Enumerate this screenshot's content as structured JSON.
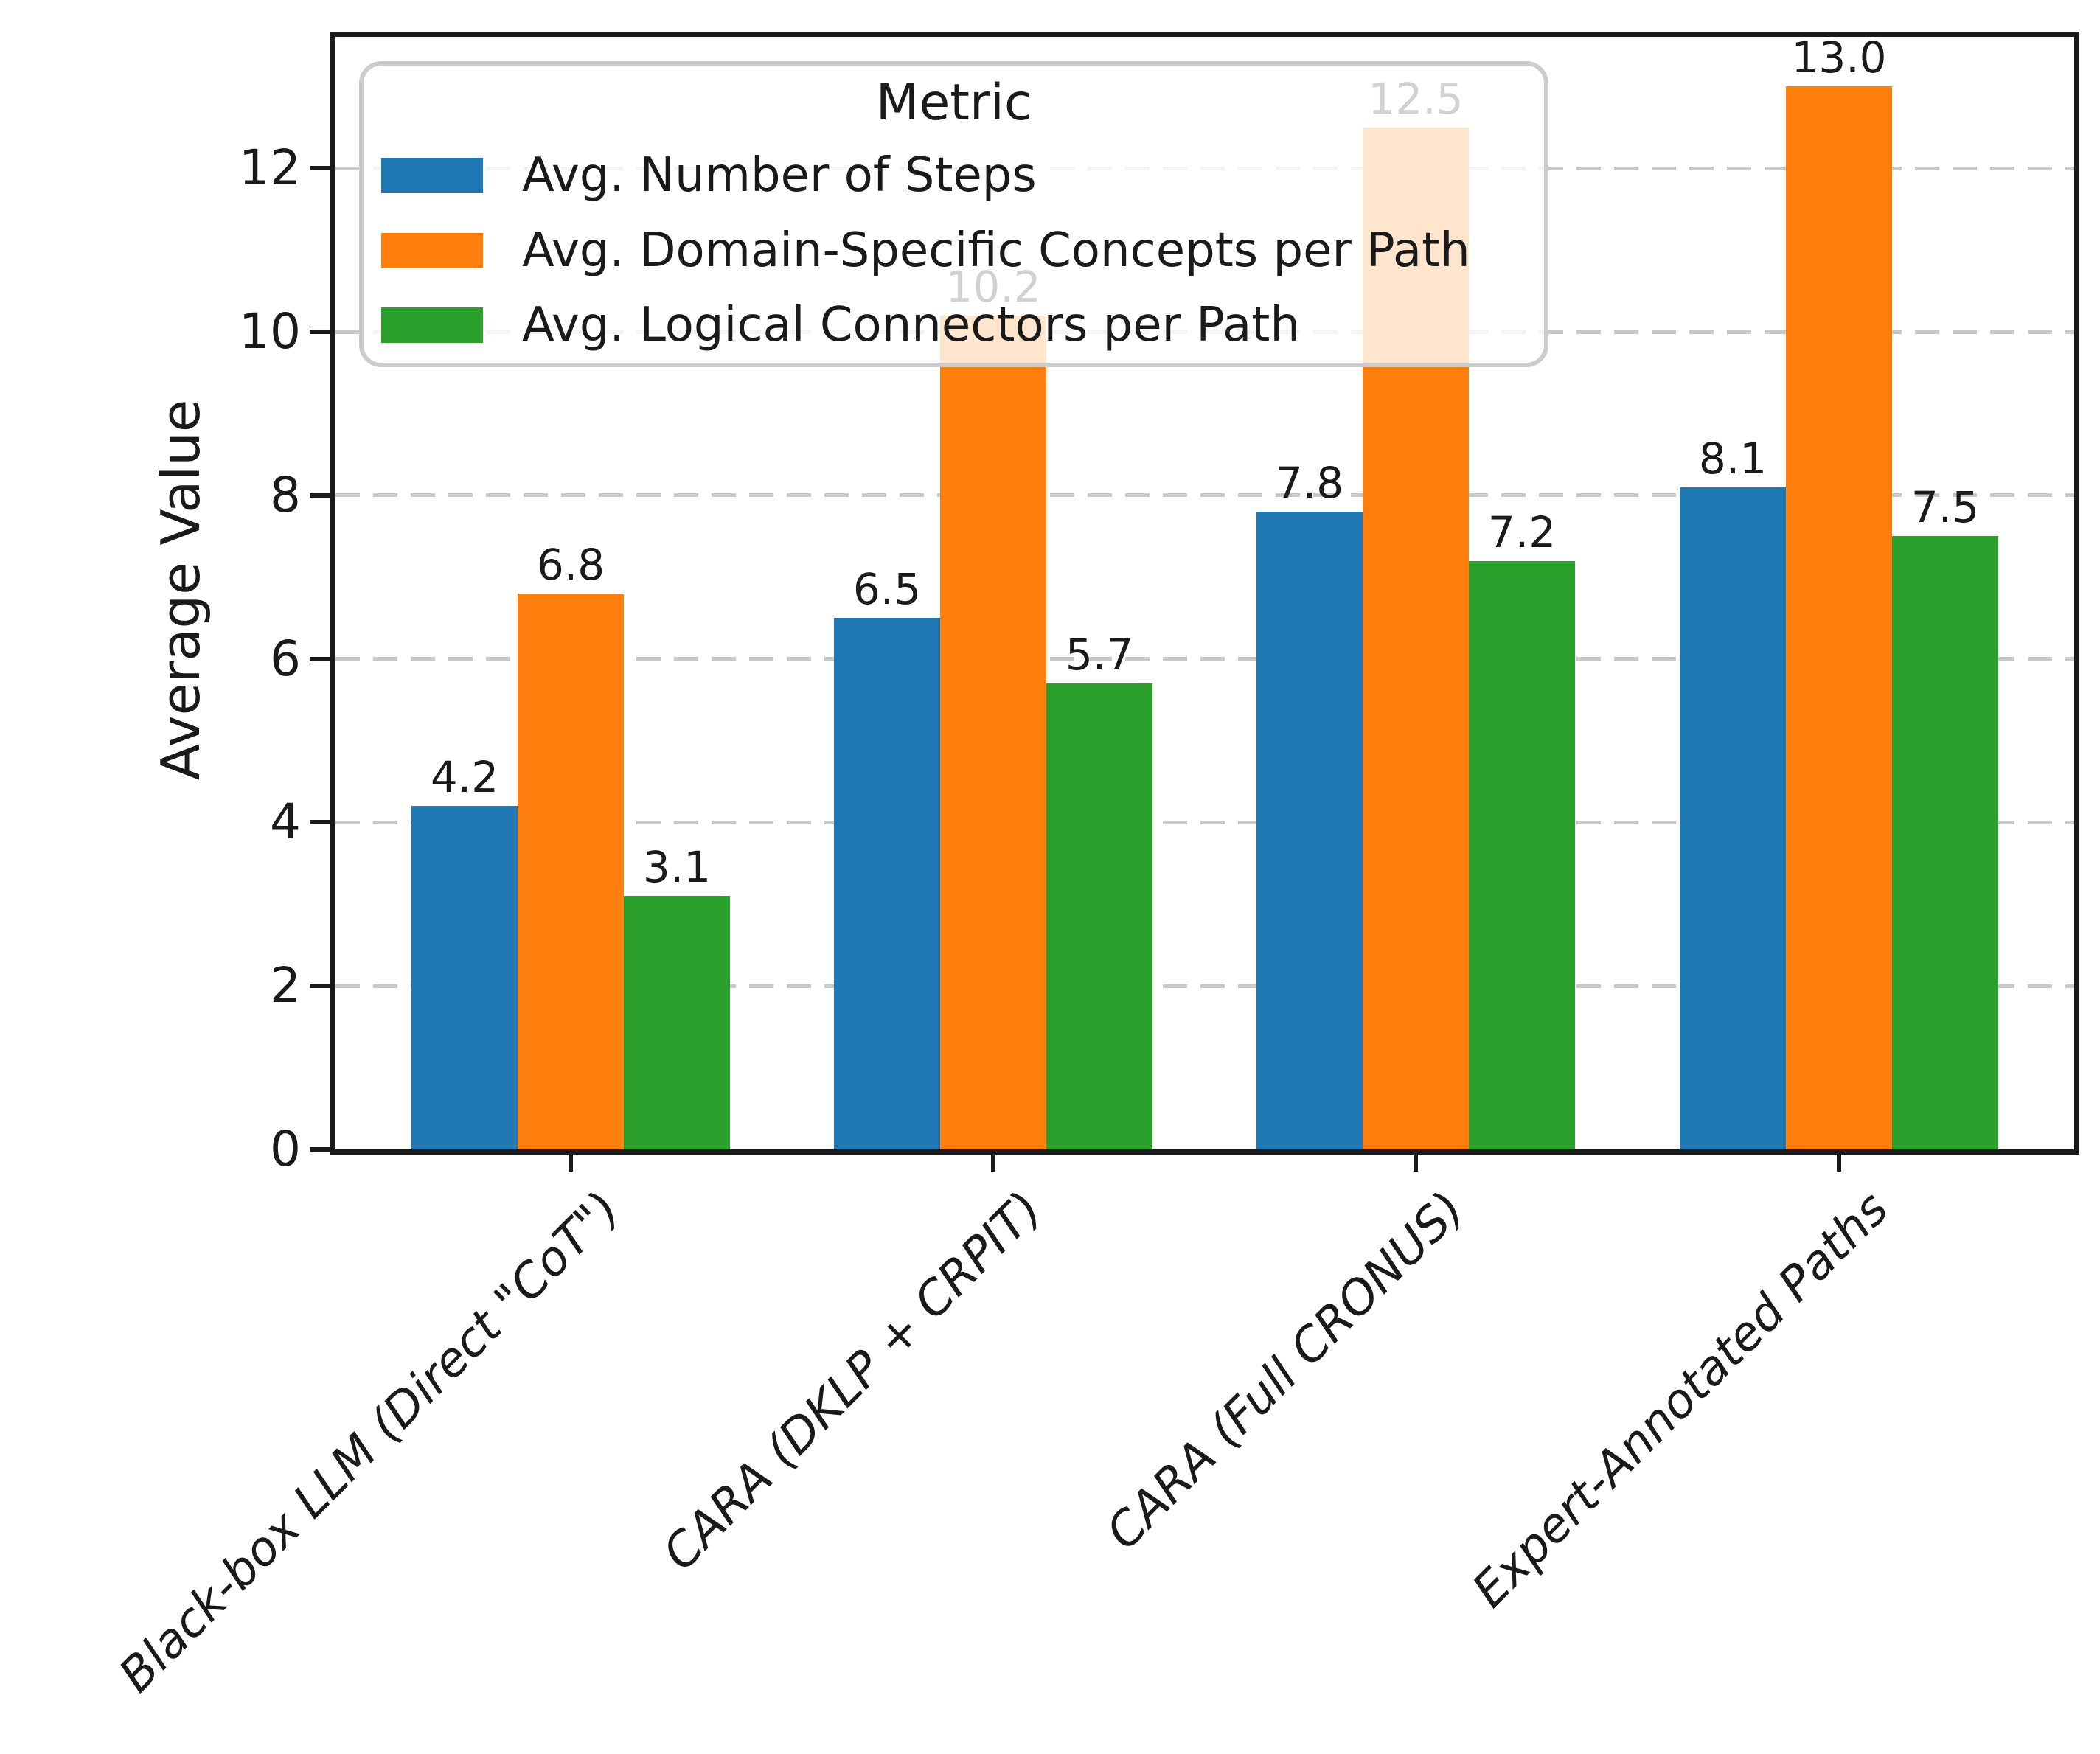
{
  "chart_data": {
    "type": "bar",
    "title": "",
    "xlabel": "",
    "ylabel": "Average Value",
    "categories": [
      "Black-box LLM (Direct \"CoT\")",
      "CARA (DKLP + CRPIT)",
      "CARA (Full CRONUS)",
      "Expert-Annotated Paths"
    ],
    "series": [
      {
        "name": "Avg. Number of Steps",
        "color": "#1f77b4",
        "values": [
          4.2,
          6.5,
          7.8,
          8.1
        ]
      },
      {
        "name": "Avg. Domain-Specific Concepts per Path",
        "color": "#ff7f0e",
        "values": [
          6.8,
          10.2,
          12.5,
          13.0
        ]
      },
      {
        "name": "Avg. Logical Connectors per Path",
        "color": "#2ca02c",
        "values": [
          3.1,
          5.7,
          7.2,
          7.5
        ]
      }
    ],
    "yticks": [
      0,
      2,
      4,
      6,
      8,
      10,
      12
    ],
    "ylim": [
      0,
      13.6
    ],
    "value_label_decimals": 1,
    "grid": {
      "axis": "y",
      "style": "dashed",
      "color": "#c9c9c9"
    },
    "legend": {
      "title": "Metric",
      "position": "upper left"
    }
  }
}
